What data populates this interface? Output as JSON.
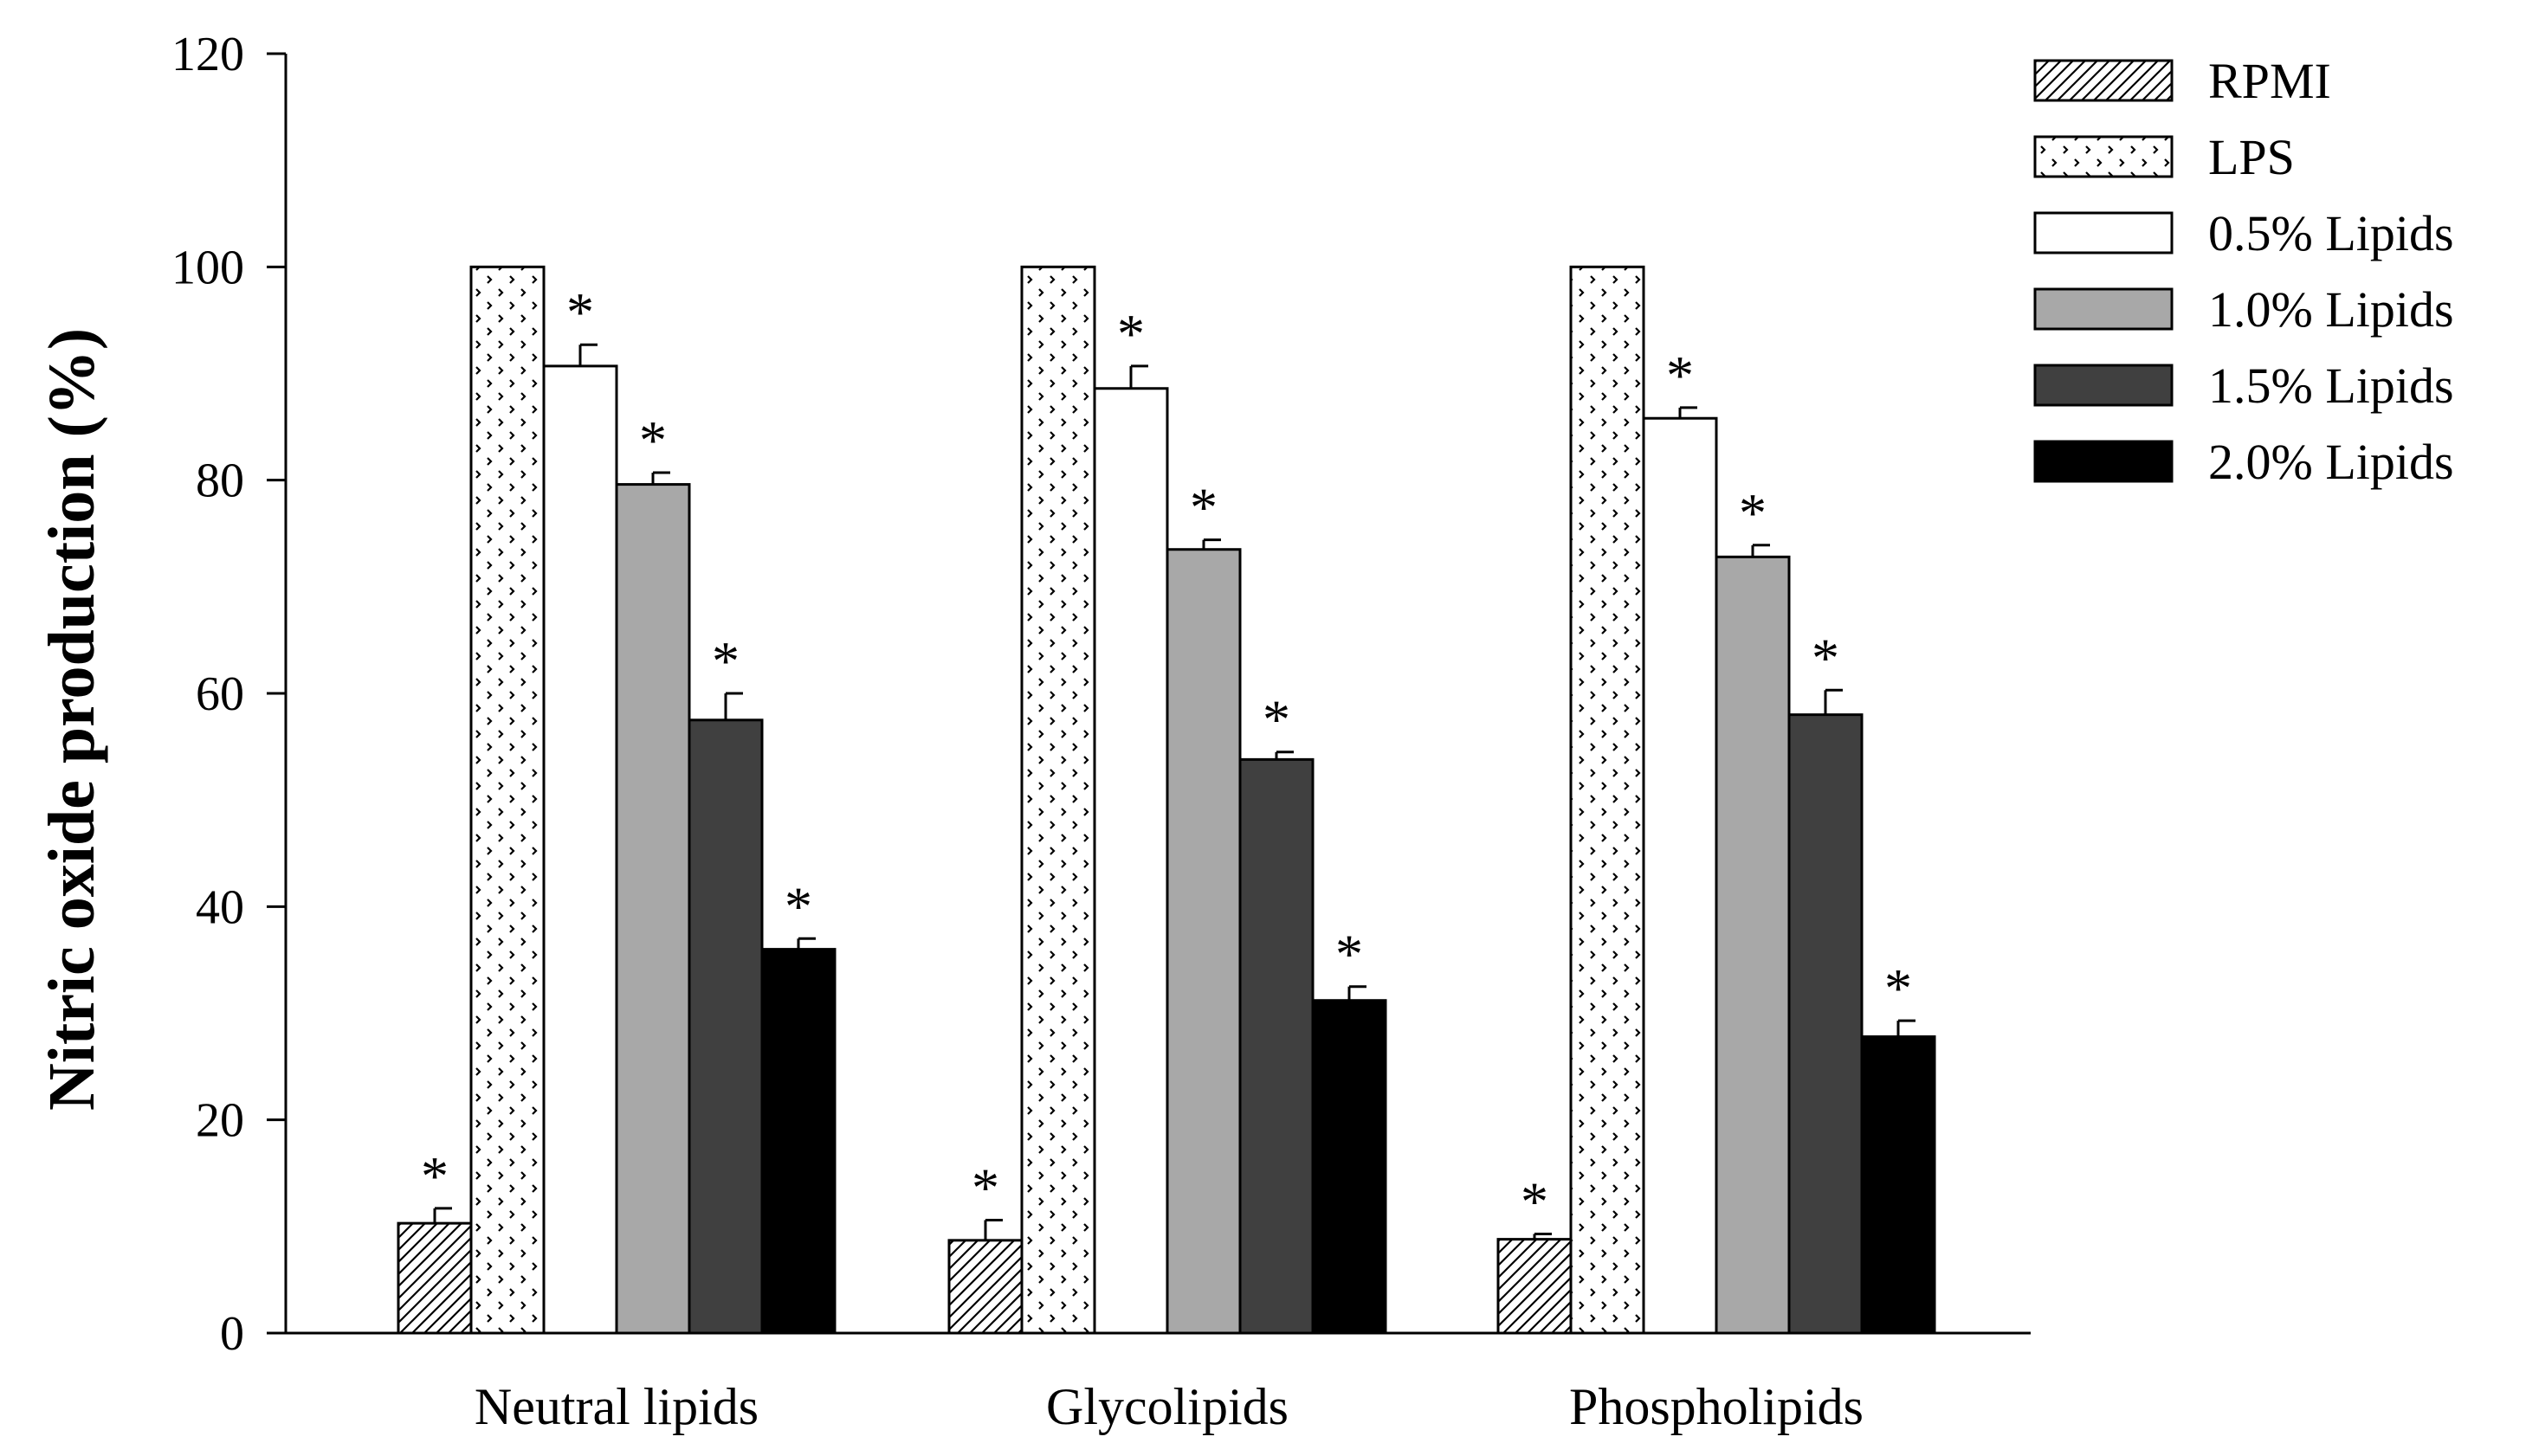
{
  "chart_data": {
    "type": "bar",
    "title": "",
    "xlabel": "",
    "ylabel": "Nitric oxide production (%)",
    "ylim": [
      0,
      120
    ],
    "yticks": [
      0,
      20,
      40,
      60,
      80,
      100,
      120
    ],
    "categories": [
      "Neutral lipids",
      "Glycolipids",
      "Phospholipids"
    ],
    "legend_position": "top-right",
    "series": [
      {
        "name": "RPMI",
        "pattern": "hatch",
        "values": [
          10.3,
          8.7,
          8.8
        ],
        "errors": [
          1.4,
          1.9,
          0.5
        ],
        "significant": [
          true,
          true,
          true
        ]
      },
      {
        "name": "LPS",
        "pattern": "dots",
        "values": [
          100,
          100,
          100
        ],
        "errors": [
          0,
          0,
          0
        ],
        "significant": [
          false,
          false,
          false
        ]
      },
      {
        "name": "0.5% Lipids",
        "pattern": "solid",
        "fill": "#ffffff",
        "values": [
          90.7,
          88.6,
          85.8
        ],
        "errors": [
          2.0,
          2.1,
          1.0
        ],
        "significant": [
          true,
          true,
          true
        ]
      },
      {
        "name": "1.0% Lipids",
        "pattern": "solid",
        "fill": "#a8a8a8",
        "values": [
          79.6,
          73.5,
          72.8
        ],
        "errors": [
          1.1,
          0.9,
          1.1
        ],
        "significant": [
          true,
          true,
          true
        ]
      },
      {
        "name": "1.5% Lipids",
        "pattern": "solid",
        "fill": "#404040",
        "values": [
          57.5,
          53.8,
          58.0
        ],
        "errors": [
          2.5,
          0.7,
          2.3
        ],
        "significant": [
          true,
          true,
          true
        ]
      },
      {
        "name": "2.0% Lipids",
        "pattern": "solid",
        "fill": "#000000",
        "values": [
          36.0,
          31.2,
          27.8
        ],
        "errors": [
          1.0,
          1.3,
          1.5
        ],
        "significant": [
          true,
          true,
          true
        ]
      }
    ],
    "significance_marker": "*"
  }
}
